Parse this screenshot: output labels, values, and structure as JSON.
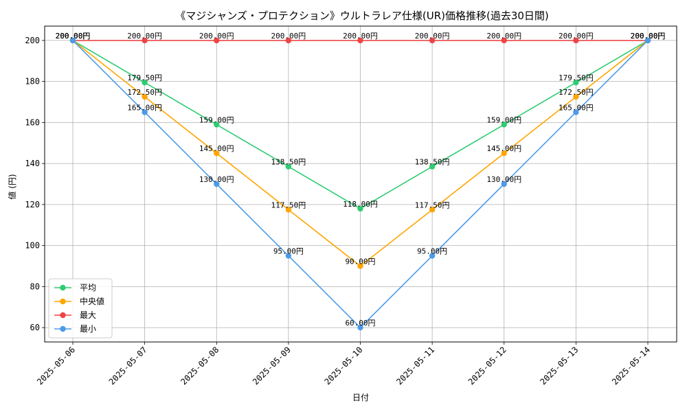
{
  "chart_data": {
    "type": "line",
    "title": "《マジシャンズ・プロテクション》ウルトラレア仕様(UR)価格推移(過去30日間)",
    "xlabel": "日付",
    "ylabel": "値 (円)",
    "categories": [
      "2025-05-06",
      "2025-05-07",
      "2025-05-08",
      "2025-05-09",
      "2025-05-10",
      "2025-05-11",
      "2025-05-12",
      "2025-05-13",
      "2025-05-14"
    ],
    "ylim": [
      53,
      207
    ],
    "yticks": [
      60,
      80,
      100,
      120,
      140,
      160,
      180,
      200
    ],
    "grid": true,
    "legend_position": "lower-left",
    "value_suffix": "円",
    "series": [
      {
        "name": "平均",
        "color": "#2ecc71",
        "values": [
          200,
          179.5,
          159,
          138.5,
          118,
          138.5,
          159,
          179.5,
          200
        ]
      },
      {
        "name": "中央値",
        "color": "#ffa500",
        "values": [
          200,
          172.5,
          145,
          117.5,
          90,
          117.5,
          145,
          172.5,
          200
        ]
      },
      {
        "name": "最大",
        "color": "#ef4444",
        "values": [
          200,
          200,
          200,
          200,
          200,
          200,
          200,
          200,
          200
        ]
      },
      {
        "name": "最小",
        "color": "#4c9be8",
        "values": [
          200,
          165,
          130,
          95,
          60,
          95,
          130,
          165,
          200
        ]
      }
    ]
  }
}
